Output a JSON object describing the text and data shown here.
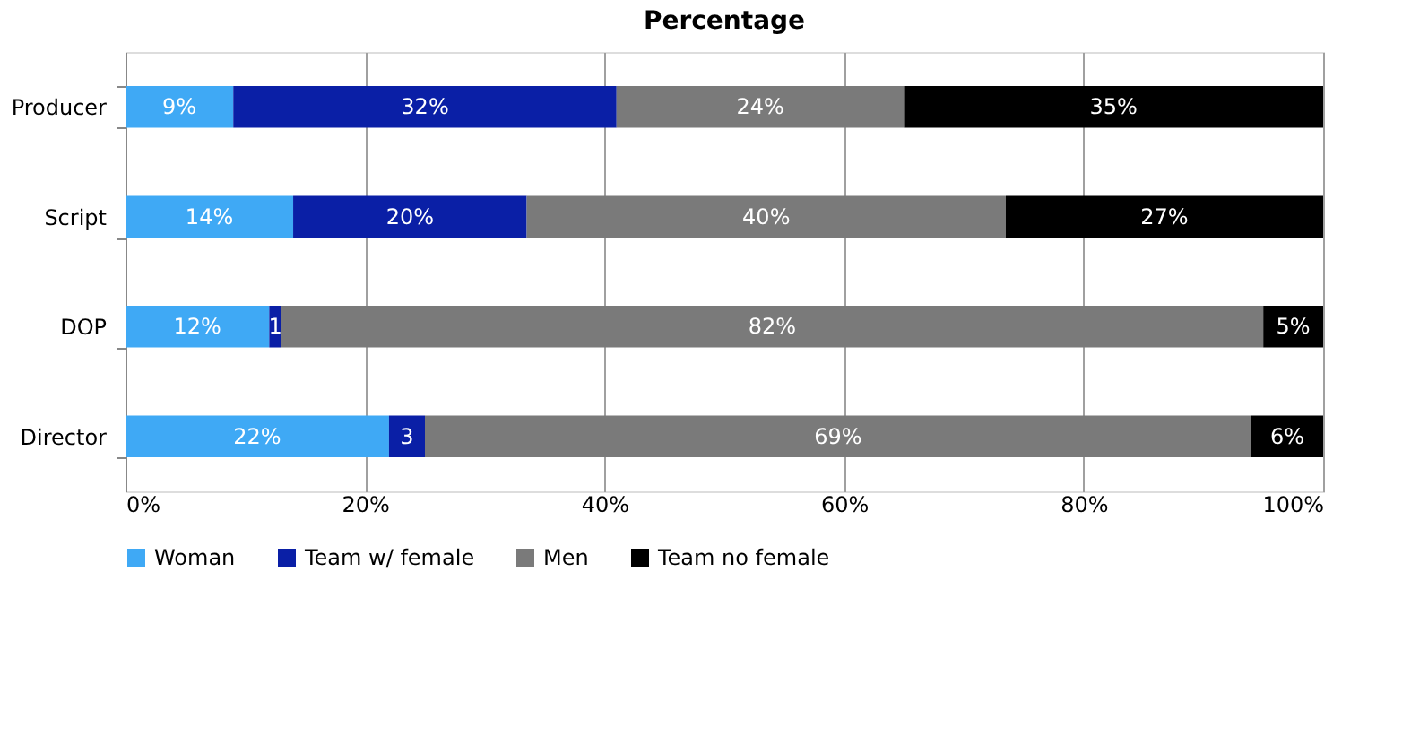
{
  "chart_data": {
    "type": "bar",
    "orientation": "horizontal",
    "stacked": true,
    "title": "Percentage",
    "categories": [
      "Producer",
      "Script",
      "DOP",
      "Director"
    ],
    "series": [
      {
        "name": "Woman",
        "color": "#3fa9f5",
        "values": [
          9,
          14,
          12,
          22
        ],
        "value_labels": [
          "9%",
          "14%",
          "12%",
          "22%"
        ]
      },
      {
        "name": "Team w/ female",
        "color": "#0a1fa6",
        "values": [
          32,
          19.5,
          1,
          3
        ],
        "value_labels": [
          "32%",
          "20%",
          "1",
          "3"
        ]
      },
      {
        "name": "Men",
        "color": "#7a7a7a",
        "values": [
          24,
          40,
          82,
          69
        ],
        "value_labels": [
          "24%",
          "40%",
          "82%",
          "69%"
        ]
      },
      {
        "name": "Team no female",
        "color": "#000000",
        "values": [
          35,
          26.5,
          5,
          6
        ],
        "value_labels": [
          "35%",
          "27%",
          "5%",
          "6%"
        ]
      }
    ],
    "xlim": [
      0,
      100
    ],
    "xticks": [
      {
        "value": 0,
        "label": "0%"
      },
      {
        "value": 20,
        "label": "20%"
      },
      {
        "value": 40,
        "label": "40%"
      },
      {
        "value": 60,
        "label": "60%"
      },
      {
        "value": 80,
        "label": "80%"
      },
      {
        "value": 100,
        "label": "100%"
      }
    ],
    "grid": "x",
    "legend": "bottom"
  }
}
